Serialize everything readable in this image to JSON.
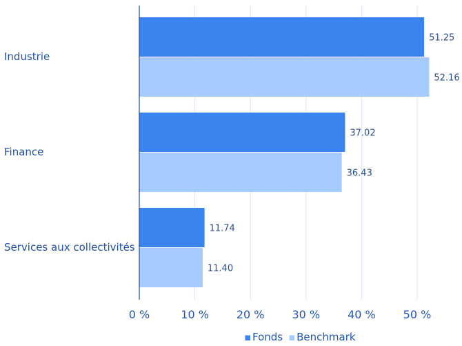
{
  "chart_data": {
    "type": "bar",
    "orientation": "horizontal",
    "categories": [
      "Industrie",
      "Finance",
      "Services aux collectivités"
    ],
    "series": [
      {
        "name": "Fonds",
        "values": [
          51.25,
          37.02,
          11.74
        ],
        "value_labels": [
          "51.25",
          "37.02",
          "11.74"
        ],
        "color": "#3b84ef"
      },
      {
        "name": "Benchmark",
        "values": [
          52.16,
          36.43,
          11.4
        ],
        "value_labels": [
          "52.16",
          "36.43",
          "11.40"
        ],
        "color": "#a6cbff"
      }
    ],
    "xlim": [
      0,
      50
    ],
    "xticks": [
      0,
      10,
      20,
      30,
      40,
      50
    ],
    "xtick_labels": [
      "0 %",
      "10 %",
      "20 %",
      "30 %",
      "40 %",
      "50 %"
    ],
    "grid": true,
    "legend_position": "bottom-right",
    "legend_marker": "▪",
    "axis_color": "#1f4fa8",
    "grid_color": "#d9e6f7"
  }
}
